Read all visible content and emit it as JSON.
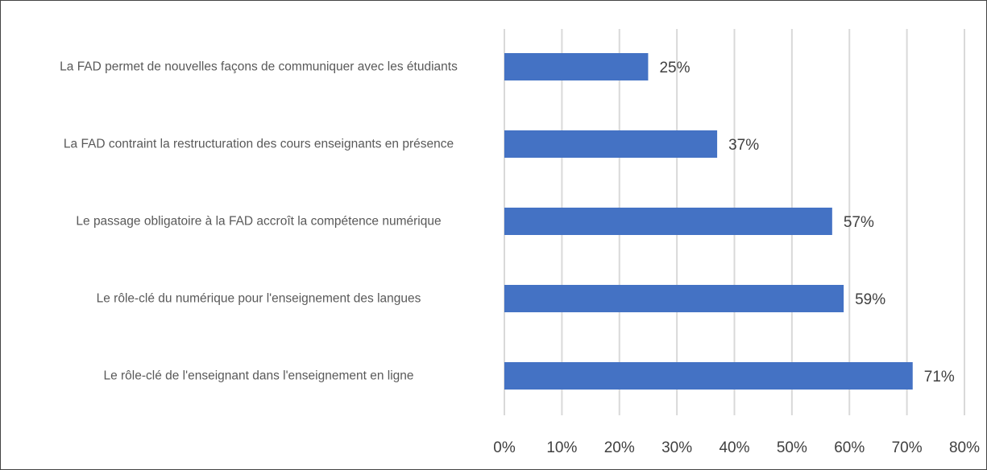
{
  "chart_data": {
    "type": "bar",
    "orientation": "horizontal",
    "categories": [
      "La FAD permet de nouvelles façons de communiquer avec les étudiants",
      "La FAD contraint la restructuration des cours enseignants en présence",
      "Le passage obligatoire à la FAD accroît la compétence numérique",
      "Le rôle-clé du numérique pour l'enseignement des langues",
      "Le rôle-clé de l'enseignant dans l'enseignement en ligne"
    ],
    "values": [
      25,
      37,
      57,
      59,
      71
    ],
    "value_labels": [
      "25%",
      "37%",
      "57%",
      "59%",
      "71%"
    ],
    "color": "#4472c4",
    "xlim": [
      0,
      80
    ],
    "xticks": [
      {
        "value": 0,
        "label": "0%"
      },
      {
        "value": 10,
        "label": "10%"
      },
      {
        "value": 20,
        "label": "20%"
      },
      {
        "value": 30,
        "label": "30%"
      },
      {
        "value": 40,
        "label": "40%"
      },
      {
        "value": 50,
        "label": "50%"
      },
      {
        "value": 60,
        "label": "60%"
      },
      {
        "value": 70,
        "label": "70%"
      },
      {
        "value": 80,
        "label": "80%"
      }
    ],
    "grid": true
  }
}
